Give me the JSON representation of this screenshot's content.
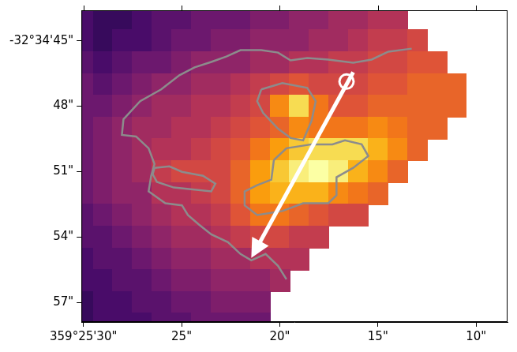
{
  "chart_data": {
    "type": "heatmap",
    "xlim": [
      30.1,
      8.4
    ],
    "xticks": [
      {
        "value": 30,
        "label": "359°25'30\""
      },
      {
        "value": 25,
        "label": "25\""
      },
      {
        "value": 20,
        "label": "20\""
      },
      {
        "value": 15,
        "label": "15\""
      },
      {
        "value": 10,
        "label": "10\""
      }
    ],
    "ylim": [
      57.9,
      43.6
    ],
    "yticks": [
      {
        "value": 45,
        "label": "-32°34'45\""
      },
      {
        "value": 48,
        "label": "48\""
      },
      {
        "value": 51,
        "label": "51\""
      },
      {
        "value": 54,
        "label": "54\""
      },
      {
        "value": 57,
        "label": "57\""
      }
    ],
    "grid": false,
    "color": "inferno",
    "color_range": [
      -1.5,
      10
    ],
    "x": [
      30,
      29,
      28,
      27,
      26,
      25,
      24,
      23,
      22,
      21,
      20,
      19,
      18,
      17,
      16,
      15,
      14,
      13,
      12,
      11,
      10,
      9
    ],
    "y": [
      44,
      45,
      46,
      47,
      48,
      49,
      50,
      51,
      52,
      53,
      54,
      55,
      56,
      57,
      58
    ],
    "cells": [
      [
        1,
        0.5,
        0.5,
        1,
        1.5,
        1.5,
        2,
        2,
        2,
        2.5,
        2.5,
        3,
        3,
        3.5,
        3.5,
        4,
        4,
        null,
        null,
        null,
        null,
        null
      ],
      [
        1,
        0.5,
        1,
        1,
        1.5,
        2,
        2,
        2.5,
        2.5,
        3,
        3,
        3,
        3.5,
        3.5,
        4,
        4.5,
        4.5,
        5,
        null,
        null,
        null,
        null
      ],
      [
        1.5,
        1,
        1.5,
        2,
        2,
        2.5,
        3,
        3,
        3,
        3.5,
        3.5,
        4,
        4,
        4.5,
        4.5,
        5,
        5,
        5.5,
        5.5,
        null,
        null,
        null
      ],
      [
        2,
        1.5,
        2,
        2.5,
        3,
        3,
        3.5,
        3.5,
        4,
        4.5,
        5,
        5.5,
        5,
        5,
        5,
        5.5,
        5.5,
        6,
        6,
        6,
        null,
        null
      ],
      [
        2,
        2,
        2.5,
        3,
        3.5,
        3.5,
        4,
        4,
        4.5,
        5,
        7,
        9,
        6.5,
        5.5,
        5.5,
        6,
        6,
        6,
        6,
        6,
        null,
        null
      ],
      [
        2,
        2.5,
        3,
        3.5,
        3.5,
        4,
        4,
        4.5,
        5,
        5.5,
        6,
        7,
        6.5,
        6.5,
        6.5,
        7,
        6.5,
        6,
        6,
        null,
        null,
        null
      ],
      [
        2,
        2.5,
        3,
        3.5,
        4,
        4,
        4.5,
        5,
        5.5,
        6.5,
        7.5,
        8.5,
        9,
        9,
        9,
        8,
        7,
        6,
        null,
        null,
        null,
        null
      ],
      [
        2,
        2.5,
        3,
        3.5,
        4.5,
        5,
        5,
        5,
        6,
        7.5,
        8.5,
        9.5,
        10,
        9.5,
        8,
        7,
        6,
        null,
        null,
        null,
        null,
        null
      ],
      [
        2,
        2.5,
        3,
        3,
        4,
        4,
        4.5,
        5,
        6,
        7.5,
        8,
        8,
        8,
        7,
        6.5,
        6,
        null,
        null,
        null,
        null,
        null,
        null
      ],
      [
        1.5,
        2,
        2.5,
        3,
        3.5,
        4,
        4,
        4.5,
        5.5,
        6.5,
        6.5,
        6,
        5.5,
        5,
        5,
        null,
        null,
        null,
        null,
        null,
        null,
        null
      ],
      [
        1.5,
        1.5,
        2,
        2.5,
        3,
        3.5,
        3.5,
        4,
        4.5,
        5,
        5,
        4.5,
        4.5,
        null,
        null,
        null,
        null,
        null,
        null,
        null,
        null,
        null
      ],
      [
        1,
        1.5,
        1.5,
        2,
        2.5,
        3,
        3,
        3.5,
        3.5,
        4,
        4,
        4,
        null,
        null,
        null,
        null,
        null,
        null,
        null,
        null,
        null,
        null
      ],
      [
        1,
        1,
        1.5,
        1.5,
        2,
        2.5,
        2.5,
        3,
        3,
        3,
        3.5,
        null,
        null,
        null,
        null,
        null,
        null,
        null,
        null,
        null,
        null,
        null
      ],
      [
        0.5,
        1,
        1,
        1.5,
        1.5,
        2,
        2,
        2.5,
        2.5,
        2.5,
        null,
        null,
        null,
        null,
        null,
        null,
        null,
        null,
        null,
        null,
        null,
        null
      ],
      [
        0.5,
        1,
        1,
        1,
        1.5,
        1.5,
        2,
        2,
        2,
        2,
        null,
        null,
        null,
        null,
        null,
        null,
        null,
        null,
        null,
        null,
        null,
        null
      ]
    ],
    "contours": {
      "color": "#8c8c8c",
      "lines": [
        [
          [
            13.28,
            45.36
          ],
          [
            14.47,
            45.5
          ],
          [
            15.32,
            45.86
          ],
          [
            16.26,
            46.01
          ],
          [
            17.53,
            45.86
          ],
          [
            18.6,
            45.79
          ],
          [
            19.45,
            45.9
          ],
          [
            20.09,
            45.54
          ],
          [
            20.94,
            45.43
          ],
          [
            22.0,
            45.43
          ],
          [
            22.72,
            45.72
          ],
          [
            23.49,
            45.97
          ],
          [
            24.34,
            46.22
          ],
          [
            25.11,
            46.58
          ],
          [
            26.04,
            47.23
          ],
          [
            27.11,
            47.77
          ],
          [
            27.96,
            48.6
          ],
          [
            28.04,
            49.32
          ],
          [
            27.32,
            49.39
          ],
          [
            26.68,
            49.93
          ],
          [
            26.38,
            50.65
          ],
          [
            26.55,
            51.19
          ],
          [
            26.68,
            51.91
          ],
          [
            25.83,
            52.45
          ],
          [
            24.98,
            52.55
          ],
          [
            24.68,
            52.99
          ],
          [
            24.13,
            53.42
          ],
          [
            23.49,
            53.88
          ],
          [
            22.64,
            54.24
          ],
          [
            22.0,
            54.78
          ],
          [
            21.45,
            55.07
          ],
          [
            20.72,
            54.78
          ],
          [
            20.09,
            55.32
          ],
          [
            19.66,
            55.94
          ]
        ],
        [
          [
            26.38,
            50.83
          ],
          [
            25.62,
            50.76
          ],
          [
            24.98,
            51.01
          ],
          [
            23.91,
            51.19
          ],
          [
            23.28,
            51.55
          ],
          [
            23.49,
            51.91
          ],
          [
            24.34,
            51.83
          ],
          [
            25.4,
            51.73
          ],
          [
            26.26,
            51.47
          ],
          [
            26.47,
            51.12
          ],
          [
            26.38,
            50.83
          ]
        ],
        [
          [
            20.94,
            47.23
          ],
          [
            19.87,
            46.94
          ],
          [
            18.6,
            47.16
          ],
          [
            18.17,
            47.77
          ],
          [
            18.38,
            48.67
          ],
          [
            18.81,
            49.57
          ],
          [
            19.45,
            49.46
          ],
          [
            20.09,
            49.03
          ],
          [
            20.85,
            48.31
          ],
          [
            21.15,
            47.77
          ],
          [
            20.94,
            47.23
          ]
        ],
        [
          [
            20.3,
            50.47
          ],
          [
            19.66,
            49.93
          ],
          [
            18.38,
            49.75
          ],
          [
            17.32,
            49.75
          ],
          [
            16.68,
            49.57
          ],
          [
            15.83,
            49.75
          ],
          [
            15.49,
            50.29
          ],
          [
            16.26,
            50.83
          ],
          [
            17.11,
            51.26
          ],
          [
            17.11,
            52.09
          ],
          [
            17.53,
            52.45
          ],
          [
            18.81,
            52.45
          ],
          [
            19.87,
            52.81
          ],
          [
            21.15,
            52.99
          ],
          [
            21.79,
            52.55
          ],
          [
            21.79,
            51.91
          ],
          [
            21.15,
            51.62
          ],
          [
            20.43,
            51.37
          ],
          [
            20.3,
            50.47
          ]
        ]
      ]
    },
    "arrow": {
      "color": "#ffffff",
      "from": [
        16.26,
        46.44
      ],
      "to": [
        21.45,
        54.96
      ]
    },
    "circle": {
      "color": "#ffffff",
      "at": [
        16.6,
        46.87
      ]
    }
  }
}
